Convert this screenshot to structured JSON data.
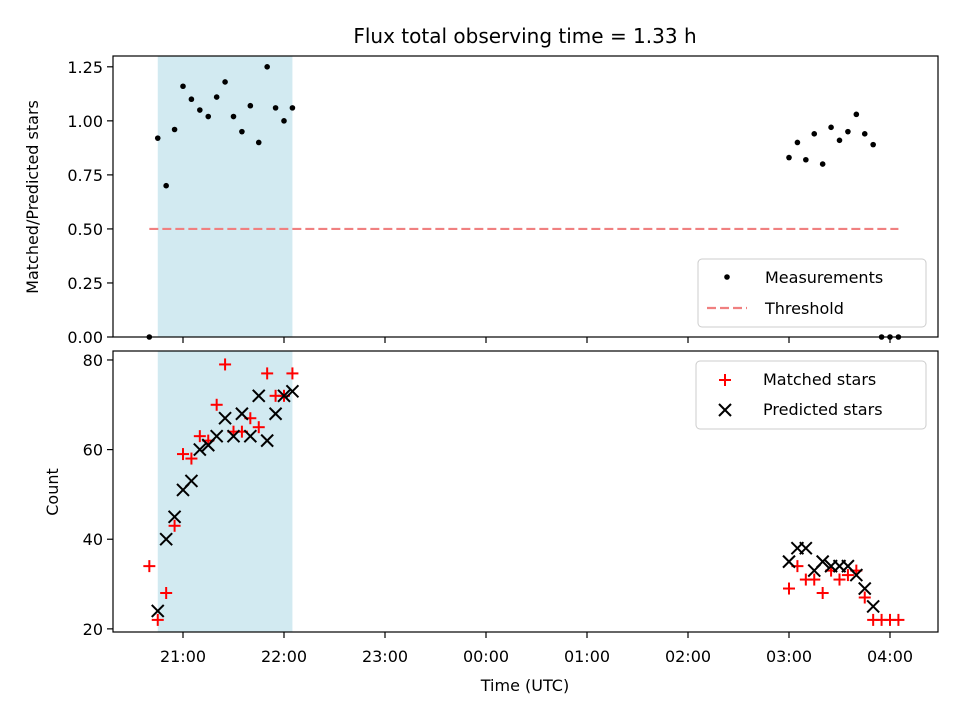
{
  "chart_data": [
    {
      "type": "scatter",
      "title": "Flux total observing time = 1.33 h",
      "xlabel": "",
      "ylabel": "Matched/Predicted stars",
      "ylim": [
        0,
        1.3
      ],
      "yticks": [
        "0.00",
        "0.25",
        "0.50",
        "0.75",
        "1.00",
        "1.25"
      ],
      "highlight_span": {
        "x_start": "20:45",
        "x_end": "22:05",
        "color": "#add8e6"
      },
      "legend_position": "lower-right",
      "series": [
        {
          "name": "Measurements",
          "marker": "dot",
          "color": "#000000",
          "points": [
            [
              "20:40",
              0.0
            ],
            [
              "20:45",
              0.92
            ],
            [
              "20:50",
              0.7
            ],
            [
              "20:55",
              0.96
            ],
            [
              "21:00",
              1.16
            ],
            [
              "21:05",
              1.1
            ],
            [
              "21:10",
              1.05
            ],
            [
              "21:15",
              1.02
            ],
            [
              "21:20",
              1.11
            ],
            [
              "21:25",
              1.18
            ],
            [
              "21:30",
              1.02
            ],
            [
              "21:35",
              0.95
            ],
            [
              "21:40",
              1.07
            ],
            [
              "21:45",
              0.9
            ],
            [
              "21:50",
              1.25
            ],
            [
              "21:55",
              1.06
            ],
            [
              "22:00",
              1.0
            ],
            [
              "22:05",
              1.06
            ],
            [
              "03:00",
              0.83
            ],
            [
              "03:05",
              0.9
            ],
            [
              "03:10",
              0.82
            ],
            [
              "03:15",
              0.94
            ],
            [
              "03:20",
              0.8
            ],
            [
              "03:25",
              0.97
            ],
            [
              "03:30",
              0.91
            ],
            [
              "03:35",
              0.95
            ],
            [
              "03:40",
              1.03
            ],
            [
              "03:45",
              0.94
            ],
            [
              "03:50",
              0.89
            ],
            [
              "03:55",
              0.0
            ],
            [
              "04:00",
              0.0
            ],
            [
              "04:05",
              0.0
            ]
          ]
        },
        {
          "name": "Threshold",
          "type": "line",
          "style": "dashed",
          "color": "#f08080",
          "points": [
            [
              "20:40",
              0.5
            ],
            [
              "04:05",
              0.5
            ]
          ]
        }
      ]
    },
    {
      "type": "scatter",
      "title": "",
      "xlabel": "Time (UTC)",
      "ylabel": "Count",
      "ylim": [
        19.3,
        82
      ],
      "yticks": [
        "20",
        "40",
        "60",
        "80"
      ],
      "xticks": [
        "21:00",
        "22:00",
        "23:00",
        "00:00",
        "01:00",
        "02:00",
        "03:00",
        "04:00"
      ],
      "highlight_span": {
        "x_start": "20:45",
        "x_end": "22:05",
        "color": "#add8e6"
      },
      "legend_position": "upper-right",
      "series": [
        {
          "name": "Matched stars",
          "marker": "plus",
          "color": "#ff0000",
          "points": [
            [
              "20:40",
              34
            ],
            [
              "20:45",
              22
            ],
            [
              "20:50",
              28
            ],
            [
              "20:55",
              43
            ],
            [
              "21:00",
              59
            ],
            [
              "21:05",
              58
            ],
            [
              "21:10",
              63
            ],
            [
              "21:15",
              62
            ],
            [
              "21:20",
              70
            ],
            [
              "21:25",
              79
            ],
            [
              "21:30",
              64
            ],
            [
              "21:35",
              64
            ],
            [
              "21:40",
              67
            ],
            [
              "21:45",
              65
            ],
            [
              "21:50",
              77
            ],
            [
              "21:55",
              72
            ],
            [
              "22:00",
              72
            ],
            [
              "22:05",
              77
            ],
            [
              "03:00",
              29
            ],
            [
              "03:05",
              34
            ],
            [
              "03:10",
              31
            ],
            [
              "03:15",
              31
            ],
            [
              "03:20",
              28
            ],
            [
              "03:25",
              33
            ],
            [
              "03:30",
              31
            ],
            [
              "03:35",
              32
            ],
            [
              "03:40",
              33
            ],
            [
              "03:45",
              27
            ],
            [
              "03:50",
              22
            ],
            [
              "03:55",
              22
            ],
            [
              "04:00",
              22
            ],
            [
              "04:05",
              22
            ]
          ]
        },
        {
          "name": "Predicted stars",
          "marker": "x",
          "color": "#000000",
          "points": [
            [
              "20:45",
              24
            ],
            [
              "20:50",
              40
            ],
            [
              "20:55",
              45
            ],
            [
              "21:00",
              51
            ],
            [
              "21:05",
              53
            ],
            [
              "21:10",
              60
            ],
            [
              "21:15",
              61
            ],
            [
              "21:20",
              63
            ],
            [
              "21:25",
              67
            ],
            [
              "21:30",
              63
            ],
            [
              "21:35",
              68
            ],
            [
              "21:40",
              63
            ],
            [
              "21:45",
              72
            ],
            [
              "21:50",
              62
            ],
            [
              "21:55",
              68
            ],
            [
              "22:00",
              72
            ],
            [
              "22:05",
              73
            ],
            [
              "03:00",
              35
            ],
            [
              "03:05",
              38
            ],
            [
              "03:10",
              38
            ],
            [
              "03:15",
              33
            ],
            [
              "03:20",
              35
            ],
            [
              "03:25",
              34
            ],
            [
              "03:30",
              34
            ],
            [
              "03:35",
              34
            ],
            [
              "03:40",
              32
            ],
            [
              "03:45",
              29
            ],
            [
              "03:50",
              25
            ]
          ]
        }
      ]
    }
  ]
}
